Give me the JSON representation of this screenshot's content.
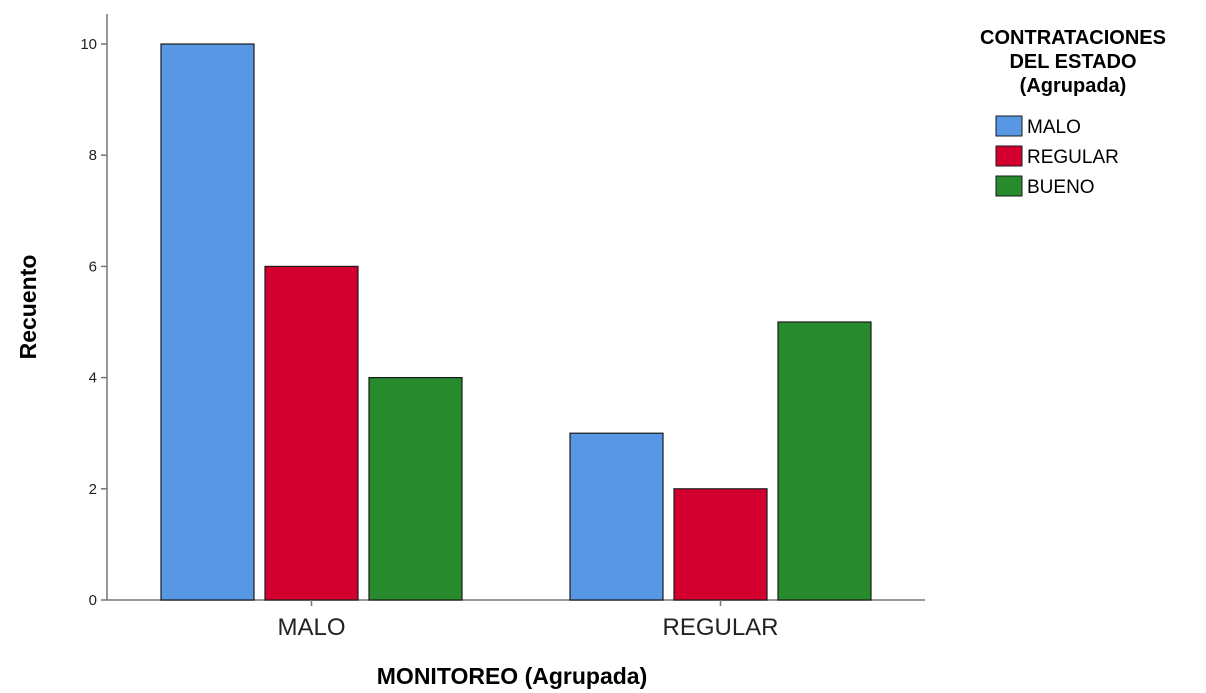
{
  "chart_data": {
    "type": "bar",
    "categories": [
      "MALO",
      "REGULAR"
    ],
    "series": [
      {
        "name": "MALO",
        "values": [
          10,
          3
        ],
        "color": "#5897e4"
      },
      {
        "name": "REGULAR",
        "values": [
          6,
          2
        ],
        "color": "#d3002f"
      },
      {
        "name": "BUENO",
        "values": [
          4,
          5
        ],
        "color": "#278a2c"
      }
    ],
    "title": "",
    "xlabel": "MONITOREO (Agrupada)",
    "ylabel": "Recuento",
    "ylim": [
      0,
      10
    ],
    "yticks": [
      "0",
      "2",
      "4",
      "6",
      "8",
      "10"
    ],
    "legend": {
      "title_lines": [
        "CONTRATACIONES",
        "DEL ESTADO",
        "(Agrupada)"
      ],
      "placement": "top-right"
    },
    "grid": false
  }
}
